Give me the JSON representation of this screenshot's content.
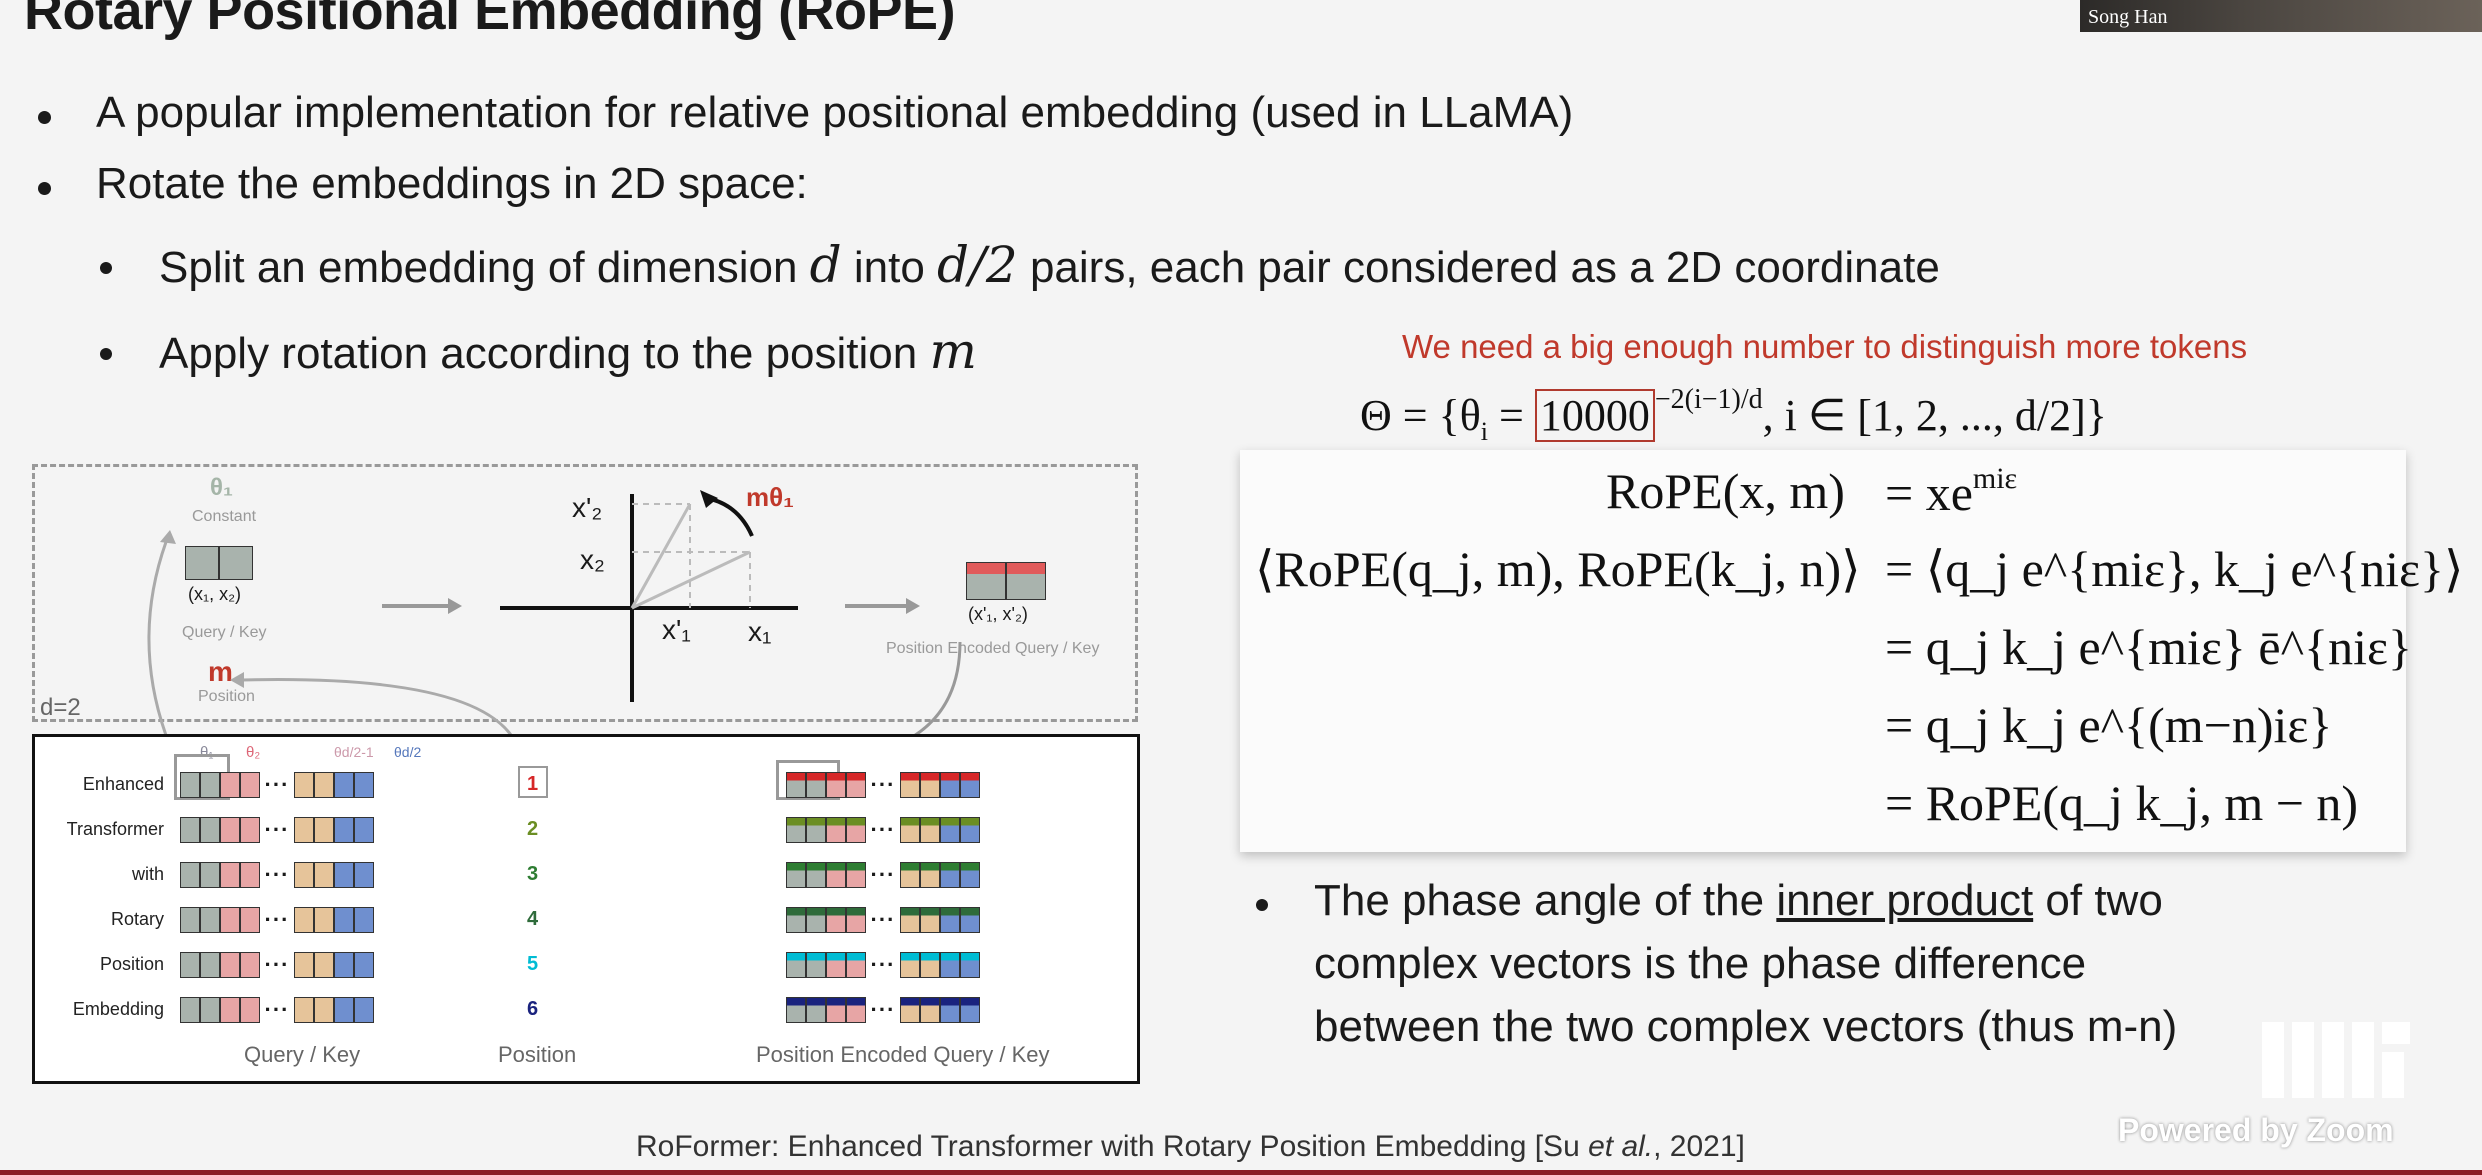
{
  "slide": {
    "title": "Rotary Positional Embedding (RoPE)",
    "bullets": [
      "A popular implementation for relative positional embedding (used in LLaMA)",
      "Rotate the embeddings in 2D space:"
    ],
    "sub_bullet_1": {
      "pre": "Split an embedding of dimension ",
      "var1": "d",
      "mid": " into ",
      "var2": "d/2",
      "post": " pairs, each pair considered as a 2D coordinate"
    },
    "sub_bullet_2": {
      "pre": "Apply rotation according to the position ",
      "var": "m"
    },
    "annotation": "We need a big enough number to distinguish more tokens",
    "theta_eq": {
      "lhs": "Θ = {θ",
      "sub_i": "i",
      "eq": " = ",
      "boxed": "10000",
      "exp": "−2(i−1)/d",
      "rhs": ", i ∈ [1, 2, ..., d/2]}"
    },
    "equations": [
      {
        "lhs": "RoPE(x, m)",
        "rhs": "= xe",
        "exp": "miε"
      },
      {
        "lhs": "⟨RoPE(q_j, m), RoPE(k_j, n)⟩",
        "rhs": "= ⟨q_j e^{miε}, k_j e^{niε}⟩"
      },
      {
        "rhs": "= q_j k_j e^{miε} ē^{niε}"
      },
      {
        "rhs": "= q_j k_j e^{(m−n)iε}"
      },
      {
        "rhs": "= RoPE(q_j k_j, m − n)"
      }
    ],
    "phase_text": {
      "l1_pre": "The phase angle of the ",
      "l1_u": "inner product",
      "l1_post": " of two",
      "l2": "complex vectors is the phase difference",
      "l3": "between the two complex vectors (thus m-n)"
    },
    "citation": {
      "pre": "RoFormer: Enhanced Transformer with Rotary Position Embedding [Su ",
      "et": "et al.",
      "post": ", 2021]"
    },
    "video": {
      "name": "Song Han",
      "watermark": "Powered by Zoom",
      "logo": "MIT"
    }
  },
  "figure": {
    "theta1": "θ₁",
    "constant": "Constant",
    "pair": "(x₁, x₂)",
    "query_key": "Query / Key",
    "m": "m",
    "position_lbl": "Position",
    "d2": "d=2",
    "x2p": "x'₂",
    "x2": "x₂",
    "x1p": "x'₁",
    "x1": "x₁",
    "m_theta": "mθ₁",
    "pair_prime": "(x'₁, x'₂)",
    "pos_enc": "Position Encoded Query / Key",
    "words": [
      "Enhanced",
      "Transformer",
      "with",
      "Rotary",
      "Position",
      "Embedding"
    ],
    "positions": [
      "1",
      "2",
      "3",
      "4",
      "5",
      "6"
    ],
    "position_colors": [
      "#d62728",
      "#6b8e23",
      "#2e7d32",
      "#2e6b3a",
      "#00bcd4",
      "#1a237e"
    ],
    "theta_heads": [
      "θ₁",
      "θ₂",
      "θd/2-1",
      "θd/2"
    ],
    "bottom_labels": [
      "Query / Key",
      "Position",
      "Position Encoded Query / Key"
    ],
    "ellipsis": "···"
  },
  "colors": {
    "gray_cell": "#a9b3ad",
    "pink_cell": "#e7a5a5",
    "tan_cell": "#e6c49a",
    "blue_cell": "#6f8fcf",
    "accent_red": "#c0392b"
  }
}
